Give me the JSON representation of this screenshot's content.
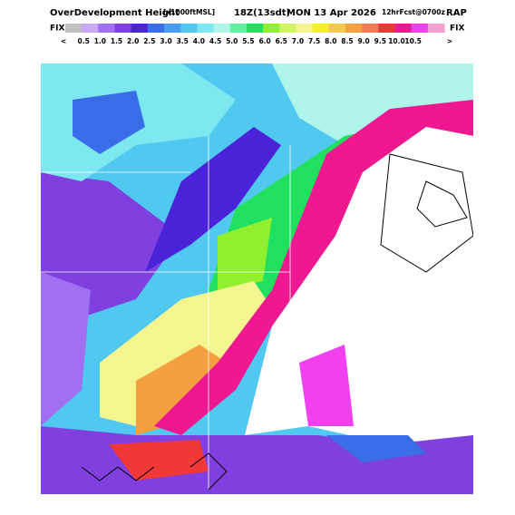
{
  "header": {
    "product": "OverDevelopment Height",
    "units": "[x1000ftMSL]",
    "valid": "18Z(13sdt)",
    "date": "MON 13 Apr 2026",
    "forecast": "12hrFcst@0700z",
    "model": "RAP"
  },
  "colorbar": {
    "left_label": "FIX",
    "right_label": "FIX",
    "labels": [
      "<",
      "0.5",
      "1.0",
      "1.5",
      "2.0",
      "2.5",
      "3.0",
      "3.5",
      "4.0",
      "4.5",
      "5.0",
      "5.5",
      "6.0",
      "6.5",
      "7.0",
      "7.5",
      "8.0",
      "8.5",
      "9.0",
      "9.5",
      "10.0",
      "10.5",
      ">"
    ],
    "colors": [
      "#c0c0c0",
      "#c9a8f5",
      "#a070f0",
      "#8040e0",
      "#4a22d8",
      "#3a6ee8",
      "#4a9cf2",
      "#50c8f0",
      "#7ee8f0",
      "#b0f5ea",
      "#60f0a0",
      "#20e060",
      "#90f030",
      "#d0f560",
      "#f5f590",
      "#f5f020",
      "#f5c850",
      "#f5a040",
      "#f57a5a",
      "#f03838",
      "#f01890",
      "#f040f0",
      "#f5a0d0"
    ]
  }
}
